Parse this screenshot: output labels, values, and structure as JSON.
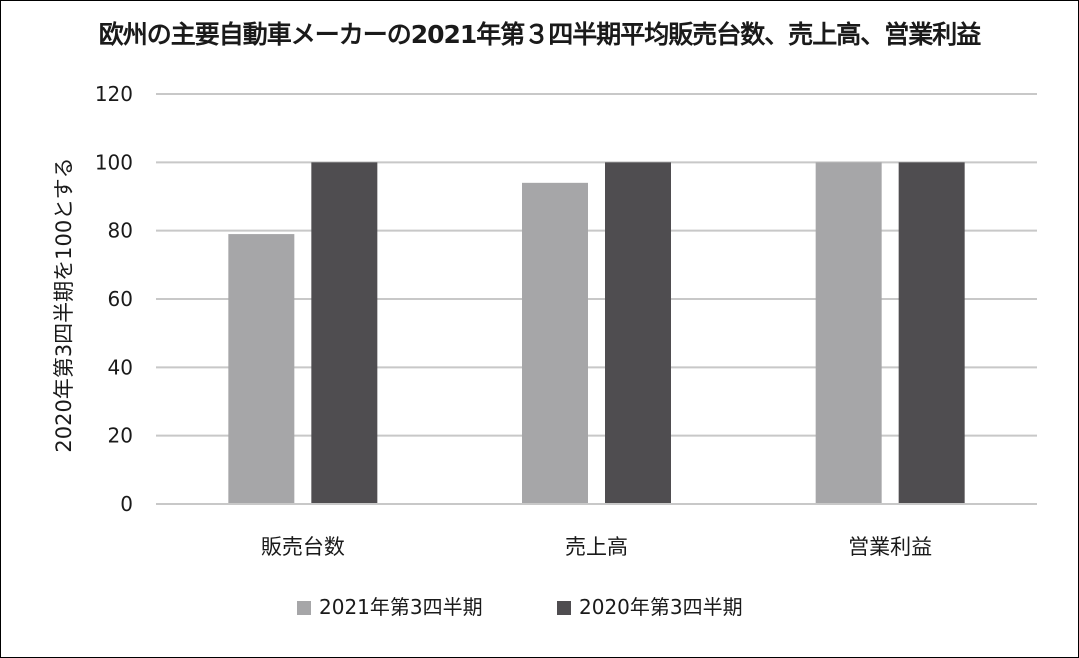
{
  "chart_data": {
    "type": "bar",
    "title": "欧州の主要自動車メーカーの2021年第３四半期平均販売台数、売上高、営業利益",
    "ylabel": "2020年第3四半期を100とする",
    "xlabel": "",
    "categories": [
      "販売台数",
      "売上高",
      "営業利益"
    ],
    "series": [
      {
        "name": "2021年第3四半期",
        "values": [
          79,
          94,
          100
        ],
        "color": "#a6a6a8"
      },
      {
        "name": "2020年第3四半期",
        "values": [
          100,
          100,
          100
        ],
        "color": "#4f4d50"
      }
    ],
    "ylim": [
      0,
      120
    ],
    "yticks": [
      0,
      20,
      40,
      60,
      80,
      100,
      120
    ],
    "grid": true,
    "gridline_color": "#c8c8c8",
    "legend_position": "bottom"
  }
}
